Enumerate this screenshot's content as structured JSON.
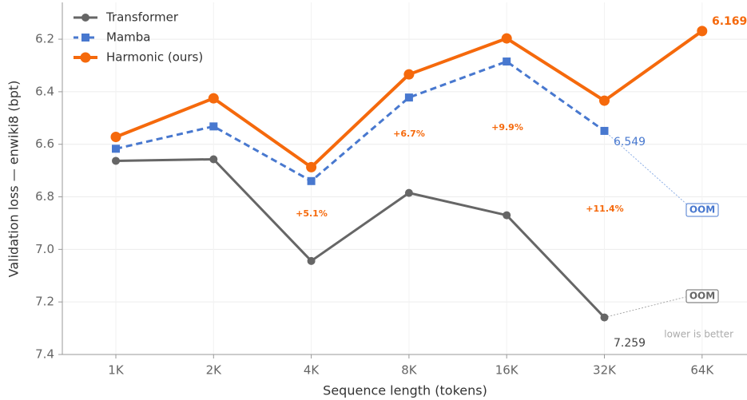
{
  "chart_data": {
    "type": "line",
    "xlabel": "Sequence length (tokens)",
    "ylabel": "Validation loss — enwiki8 (bpt)",
    "categories": [
      "1K",
      "2K",
      "4K",
      "8K",
      "16K",
      "32K",
      "64K"
    ],
    "series": [
      {
        "name": "Transformer",
        "color": "#666666",
        "marker": "circle",
        "dash": false,
        "values": [
          6.663,
          6.657,
          7.044,
          6.785,
          6.87,
          7.259,
          null
        ]
      },
      {
        "name": "Mamba",
        "color": "#4878cf",
        "marker": "square",
        "dash": true,
        "values": [
          6.617,
          6.532,
          6.74,
          6.422,
          6.285,
          6.549,
          null
        ]
      },
      {
        "name": "Harmonic (ours)",
        "color": "#f5690c",
        "marker": "circle",
        "dash": false,
        "values": [
          6.572,
          6.425,
          6.687,
          6.334,
          6.197,
          6.434,
          6.169
        ]
      }
    ],
    "ylim": [
      7.4,
      6.06
    ],
    "yticks": [
      {
        "value": 6.2,
        "label": "6.2"
      },
      {
        "value": 6.4,
        "label": "6.4"
      },
      {
        "value": 6.6,
        "label": "6.6"
      },
      {
        "value": 6.8,
        "label": "6.8"
      },
      {
        "value": 7.0,
        "label": "7.0"
      },
      {
        "value": 7.2,
        "label": "7.2"
      },
      {
        "value": 7.4,
        "label": "7.4"
      }
    ],
    "grid": true,
    "legend": "upper left",
    "annotations": [
      "+5.1%",
      "+6.7%",
      "+9.9%",
      "+11.4%"
    ],
    "oom_labels": [
      "OOM",
      "OOM"
    ],
    "note": "lower is better"
  }
}
